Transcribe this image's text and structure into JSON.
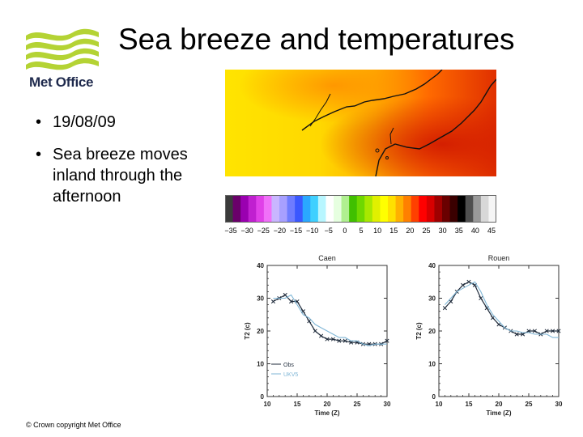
{
  "logo": {
    "text": "Met Office",
    "icon": "met-office-wave-logo"
  },
  "title": "Sea breeze and temperatures",
  "bullets": [
    {
      "text": "19/08/09"
    },
    {
      "text": "Sea breeze moves inland through the afternoon"
    }
  ],
  "colorbar": {
    "tick_labels": [
      "−35",
      "−30",
      "−25",
      "−20",
      "−15",
      "−10",
      "−5",
      "0",
      "5",
      "10",
      "15",
      "20",
      "25",
      "30",
      "35",
      "40",
      "45"
    ],
    "colors": [
      "#3b3b3b",
      "#6a006a",
      "#9a00b0",
      "#c020d0",
      "#e040e8",
      "#f070f8",
      "#c9b6ff",
      "#a7a0ff",
      "#6e7cff",
      "#3a58ff",
      "#2aa8ff",
      "#3fd0ff",
      "#b8f6ff",
      "#ffffff",
      "#e6ffe0",
      "#b0f090",
      "#40c000",
      "#6fd800",
      "#a8e800",
      "#e0f000",
      "#ffff00",
      "#ffe000",
      "#ffb000",
      "#ff8000",
      "#ff4000",
      "#ff0000",
      "#d80000",
      "#a00000",
      "#6a0000",
      "#3a0000",
      "#000000",
      "#505050",
      "#9a9a9a",
      "#d8d8d8",
      "#f5f5f5"
    ]
  },
  "chart_data": [
    {
      "type": "line",
      "title": "Caen",
      "xlabel": "Time (Z)",
      "ylabel": "T2 (c)",
      "xlim": [
        10,
        30
      ],
      "ylim": [
        0,
        40
      ],
      "xticks": [
        "10",
        "15",
        "20",
        "25",
        "30"
      ],
      "yticks": [
        "0",
        "10",
        "20",
        "30",
        "40"
      ],
      "legend_placement": "lower-left",
      "series": [
        {
          "name": "Obs",
          "color": "#1e2a3a",
          "marker": "x",
          "x": [
            11,
            12,
            13,
            14,
            15,
            16,
            17,
            18,
            19,
            20,
            21,
            22,
            23,
            24,
            25,
            26,
            27,
            28,
            29,
            30
          ],
          "y": [
            29,
            30,
            31,
            29,
            29,
            26,
            23,
            20,
            18.5,
            17.5,
            17.5,
            17,
            17,
            16.5,
            16.5,
            16,
            16,
            16,
            16,
            17
          ]
        },
        {
          "name": "UKV5",
          "color": "#7fb6d6",
          "marker": "none",
          "x": [
            11,
            12,
            13,
            14,
            15,
            16,
            17,
            18,
            19,
            20,
            21,
            22,
            23,
            24,
            25,
            26,
            27,
            28,
            29,
            30
          ],
          "y": [
            30,
            30,
            30,
            31,
            28,
            25,
            24,
            22,
            21,
            20,
            19,
            18,
            18,
            17,
            17,
            16,
            15.5,
            16,
            16,
            16
          ]
        }
      ]
    },
    {
      "type": "line",
      "title": "Rouen",
      "xlabel": "Time (Z)",
      "ylabel": "T2 (c)",
      "xlim": [
        10,
        30
      ],
      "ylim": [
        0,
        40
      ],
      "xticks": [
        "10",
        "15",
        "20",
        "25",
        "30"
      ],
      "yticks": [
        "0",
        "10",
        "20",
        "30",
        "40"
      ],
      "series": [
        {
          "name": "",
          "color": "#1e2a3a",
          "marker": "x",
          "x": [
            11,
            12,
            13,
            14,
            15,
            16,
            17,
            18,
            19,
            20,
            21,
            22,
            23,
            24,
            25,
            26,
            27,
            28,
            29,
            30
          ],
          "y": [
            27,
            29,
            32,
            34,
            35,
            34,
            30,
            27,
            24,
            22,
            21,
            20,
            19,
            19,
            20,
            20,
            19,
            20,
            20,
            20
          ]
        },
        {
          "name": "",
          "color": "#7fb6d6",
          "marker": "none",
          "x": [
            11,
            12,
            13,
            14,
            15,
            16,
            17,
            18,
            19,
            20,
            21,
            22,
            23,
            24,
            25,
            26,
            27,
            28,
            29,
            30
          ],
          "y": [
            28,
            30,
            32,
            33,
            34,
            35,
            32,
            28,
            25,
            23,
            21,
            20,
            20,
            19.5,
            19.5,
            19,
            19,
            19,
            18,
            18
          ]
        }
      ]
    }
  ],
  "footer": {
    "copyright": "© Crown copyright   Met Office"
  }
}
